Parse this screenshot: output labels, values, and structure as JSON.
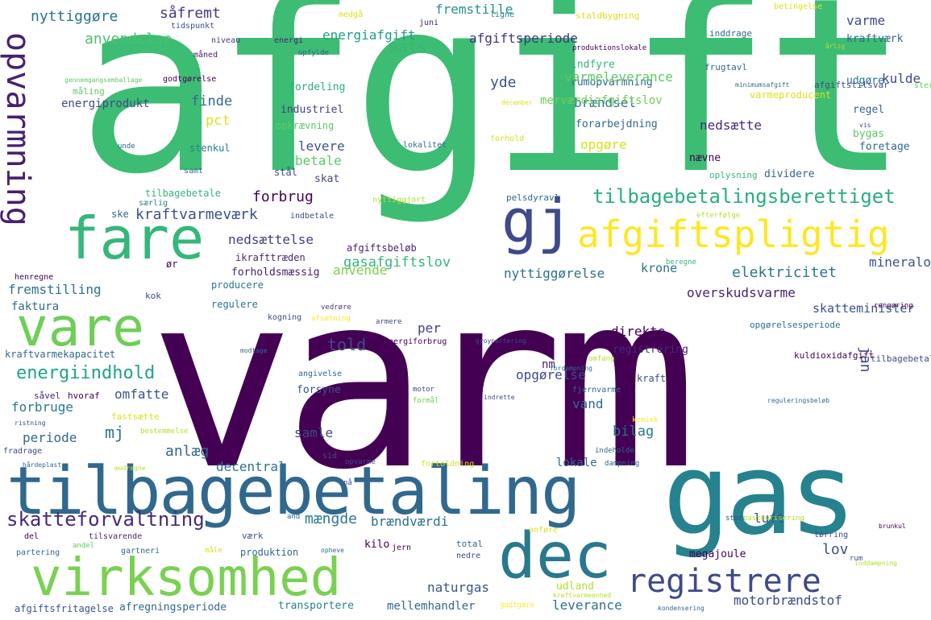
{
  "palette": {
    "background": "#ffffff",
    "dark_purple": "#440154",
    "indigo": "#482878",
    "blue": "#3e4a89",
    "steel": "#31688e",
    "teal": "#26828e",
    "cyan": "#1f9e89",
    "green": "#35b779",
    "light_green": "#6ece58",
    "lime": "#b5de2b",
    "yellow": "#fde725"
  },
  "words": [
    "afgift",
    "varm",
    "gas",
    "tilbagebetaling",
    "virksomhed",
    "dec",
    "fare",
    "vare",
    "gj",
    "registrere",
    "afgiftspligtig",
    "opvarmning",
    "tilbagebetalingsberettiget",
    "skatteforvaltning",
    "energiindhold",
    "kraftvarmeværk",
    "anvendelse",
    "nyttiggøre",
    "såfremt",
    "sats",
    "energiafgift",
    "fremstille",
    "afgiftsperiode",
    "varme",
    "kraftværk",
    "indfyre",
    "yde",
    "brændsel",
    "finde",
    "pct",
    "industriel",
    "fordeling",
    "opkrævning",
    "levere",
    "betale",
    "opgøre",
    "nævne",
    "forbrug",
    "nedsættelse",
    "gasafgiftslov",
    "anvende",
    "elektricitet",
    "krone",
    "forholdsmæssig",
    "afgiftsbeløb",
    "ikrafttræden",
    "fremstilling",
    "faktura",
    "regulere",
    "producere",
    "told",
    "per",
    "direkte",
    "registrering",
    "jan",
    "nm",
    "omfatte",
    "forbruge",
    "periode",
    "mj",
    "anlæg",
    "bilag",
    "samle",
    "vand",
    "luft",
    "lov",
    "mængde",
    "brændværdi",
    "decentral",
    "lokale",
    "naturgas",
    "leverance",
    "motorbrændstof",
    "mellemhandler",
    "transportere",
    "afregningsperiode",
    "afgiftsfritagelse",
    "udland",
    "megajoule",
    "kraft",
    "skat",
    "stål",
    "stenkul",
    "samt",
    "særlig",
    "tilbagebetale",
    "ske",
    "indbetale",
    "nyttiggjort",
    "pelsdyravl",
    "dividere",
    "oplysning",
    "bygas",
    "foretage",
    "regel",
    "udgøre",
    "frugtavl",
    "inddrage",
    "staldbygning",
    "betingelse",
    "energi",
    "niveau",
    "tidspunkt",
    "måned",
    "godtgørelse",
    "måling",
    "juni",
    "medgå",
    "ligne",
    "opfylde",
    "produktionslokale",
    "forhold",
    "rumopvarmning",
    "forarbejdning",
    "december",
    "lokalitet",
    "varmeleverance",
    "mineralolieprodukt",
    "kuldioxidafgift",
    "skatteminister",
    "overskudsvarme",
    "opgørelsesperiode",
    "tilbagebetalingsbeløb",
    "nedsætte",
    "nyttiggørelse",
    "opgørelse",
    "merværdiafgiftslov",
    "energiprodukt",
    "kulde",
    "varmeproducent",
    "afgiftstilsvar",
    "minimumsafgift",
    "årlig",
    "vis",
    "sterilisering",
    "henregne",
    "ør",
    "kok",
    "kraftvarmekapacitet",
    "hvoraf",
    "såvel",
    "fastsætte",
    "vedrøre",
    "afsætning",
    "armere",
    "energiforbrug",
    "kogning",
    "angivelse",
    "modtage",
    "forsyne",
    "motor",
    "formål",
    "fjernvarme",
    "kemisk",
    "bestemmelse",
    "ristning",
    "fradrage",
    "hårdeplast",
    "modregne",
    "sid",
    "opvarme",
    "fortoldning",
    "indeholde",
    "dampning",
    "nå",
    "and",
    "anføre",
    "opheve",
    "jern",
    "total",
    "nedre",
    "tørring",
    "stor",
    "inddampning",
    "pasteurisering",
    "kondensering",
    "godtgøre",
    "kraftvarmeenhed",
    "måle",
    "produktion",
    "partering",
    "gartneri",
    "tilsvarende",
    "del",
    "andel",
    "kilo",
    "værk",
    "beregne",
    "rengøring",
    "efterfølge",
    "omfang",
    "indrette",
    "groypartering",
    "fordampning",
    "reguleringsbeløb",
    "brunkul",
    "rum",
    "gennemgangsemballage",
    "unde"
  ]
}
